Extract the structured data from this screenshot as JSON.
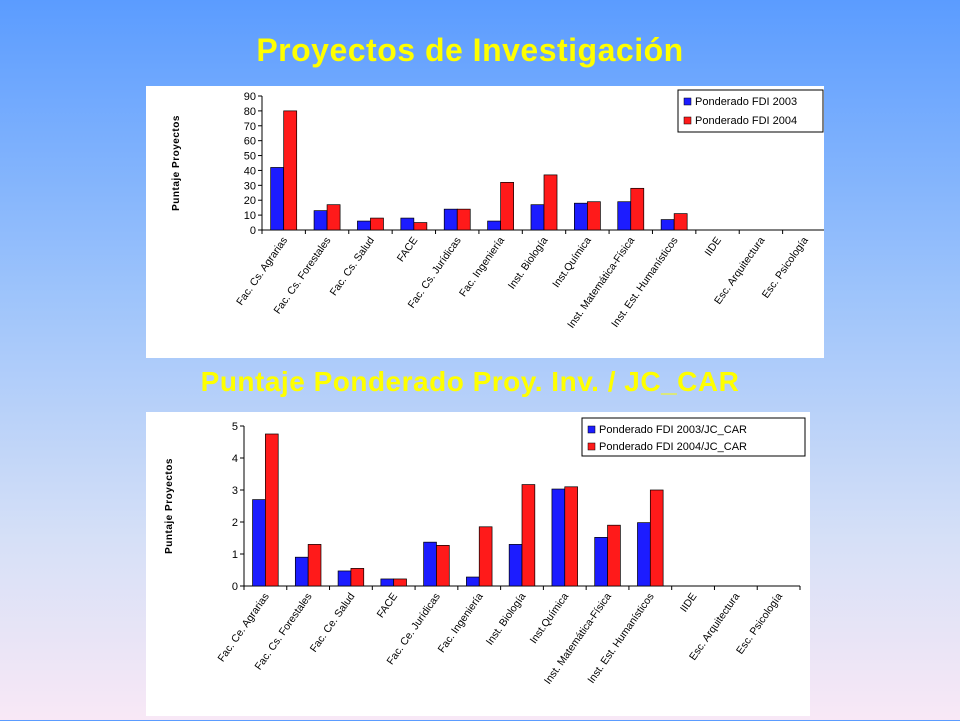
{
  "titles": {
    "main": "Proyectos de Investigación",
    "second": "Puntaje Ponderado Proy. Inv.  / JC_CAR"
  },
  "colors": {
    "series1": "#1c1cff",
    "series2": "#ff1a1a"
  },
  "chart_data": [
    {
      "type": "bar",
      "title": "Proyectos de Investigación",
      "ylabel": "Puntaje Proyectos",
      "xlabel": "",
      "ylim": [
        0,
        90
      ],
      "yticks": [
        "0",
        "10",
        "20",
        "30",
        "40",
        "50",
        "60",
        "70",
        "80",
        "90"
      ],
      "legend": "top-right",
      "grid": false,
      "categories": [
        "Fac. Cs. Agrarias",
        "Fac. Cs. Forestales",
        "Fac. Cs. Salud",
        "FACE",
        "Fac. Cs. Jurídicas",
        "Fac. Ingeniería",
        "Inst. Biología",
        "Inst.Química",
        "Inst. Matemática-Física",
        "Inst. Est. Humanísticos",
        "IIDE",
        "Esc. Arquitectura",
        "Esc. Psicología"
      ],
      "series": [
        {
          "name": "Ponderado FDI 2003",
          "values": [
            42,
            13,
            6,
            8,
            14,
            6,
            17,
            18,
            19,
            7,
            0,
            0,
            0
          ]
        },
        {
          "name": "Ponderado FDI 2004",
          "values": [
            80,
            17,
            8,
            5,
            14,
            32,
            37,
            19,
            28,
            11,
            0,
            0,
            0
          ]
        }
      ]
    },
    {
      "type": "bar",
      "title": "Puntaje Ponderado Proy. Inv.  / JC_CAR",
      "ylabel": "Puntaje Proyectos",
      "xlabel": "",
      "ylim": [
        0,
        5
      ],
      "yticks": [
        "0",
        "1",
        "2",
        "3",
        "4",
        "5"
      ],
      "legend": "top-right",
      "grid": false,
      "categories": [
        "Fac. Ce. Agrarias",
        "Fac. Cs. Forestales",
        "Fac. Ce. Salud",
        "FACE",
        "Fac. Ce. Jurídicas",
        "Fac. Ingeniería",
        "Inst. Biología",
        "Inst.Química",
        "Inst. Matemática-Física",
        "Inst. Est. Humanísticos",
        "IIDE",
        "Esc. Arquitectura",
        "Esc. Psicología"
      ],
      "series": [
        {
          "name": "Ponderado FDI 2003/JC_CAR",
          "values": [
            2.7,
            0.9,
            0.47,
            0.22,
            1.37,
            0.28,
            1.3,
            3.03,
            1.52,
            1.98,
            0,
            0,
            0
          ]
        },
        {
          "name": "Ponderado FDI 2004/JC_CAR",
          "values": [
            4.75,
            1.3,
            0.55,
            0.22,
            1.27,
            1.85,
            3.17,
            3.1,
            1.9,
            3.0,
            0,
            0,
            0
          ]
        }
      ]
    }
  ]
}
